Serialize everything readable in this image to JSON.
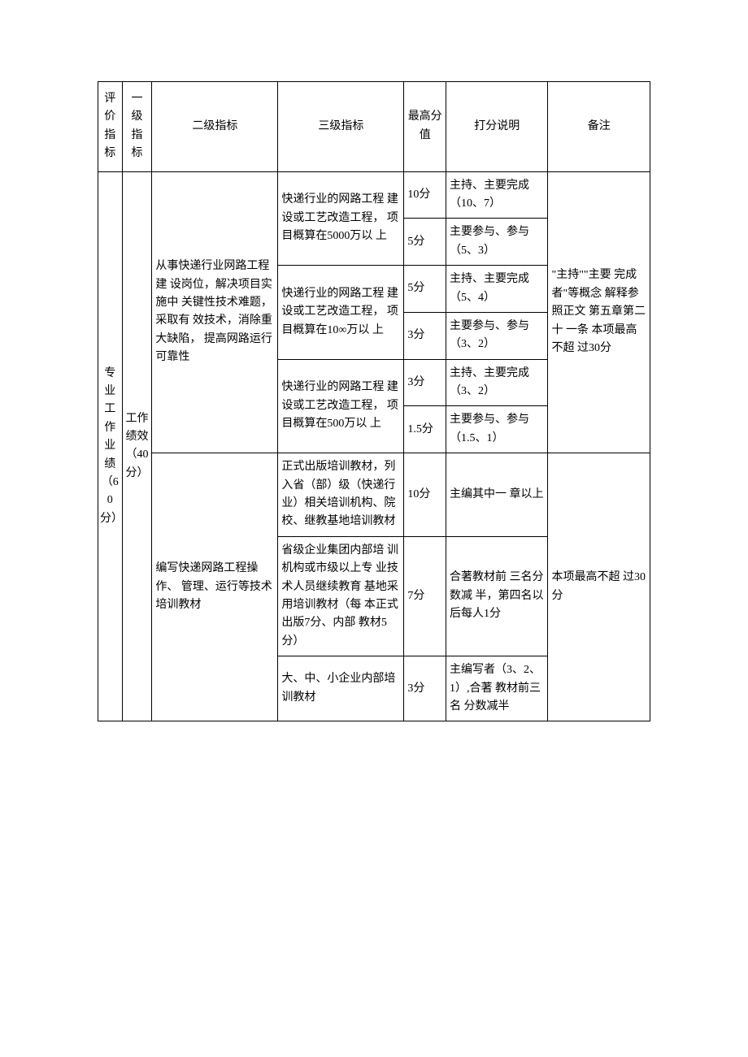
{
  "headers": {
    "eval": "评价指标",
    "l1": "一级指标",
    "l2": "二级指标",
    "l3": "三级指标",
    "score": "最高分值",
    "desc": "打分说明",
    "note": "备注"
  },
  "col0": "专业工作业绩 （60分）",
  "col1": "工作绩效（40分）",
  "section1": {
    "l2": "从事快递行业网路工程建 设岗位，解决项目实施中 关键性技术难题，采取有 效技术，消除重大缺陷， 提高网路运行可靠性",
    "note": "\"主持\"\"主要 完成者\"等概念 解释参照正文   第五章第二十 一条 本项最高不超   过30分",
    "rows": [
      {
        "l3": "快递行业的网路工程 建设或工艺改造工程， 项目概算在5000万以 上",
        "score": "10分",
        "desc": "主持、主要完成（10、7）"
      },
      {
        "score": "5分",
        "desc": "主要参与、参与（5、3）"
      },
      {
        "l3": "快递行业的网路工程 建设或工艺改造工程， 项目概算在10∞万以 上",
        "score": "5分",
        "desc": "主持、主要完成（5、4）"
      },
      {
        "score": "3分",
        "desc": "主要参与、参与（3、2）"
      },
      {
        "l3": "快递行业的网路工程 建设或工艺改造工程， 项目概算在500万以 上",
        "score": "3分",
        "desc": "主持、主要完成（3、2）"
      },
      {
        "score": "1.5分",
        "desc": "主要参与、参与（1.5、1）"
      }
    ]
  },
  "section2": {
    "l2": "编写快递网路工程操作、 管理、运行等技术培训教材",
    "note": "本项最高不超   过30分",
    "rows": [
      {
        "l3": "正式出版培训教材，列 入省（部）级（快递行 业）相关培训机构、院 校、继教基地培训教材",
        "score": "10分",
        "desc": "主编其中一 章以上"
      },
      {
        "l3": "省级企业集团内部培 训机构或市级以上专 业技术人员继续教育 基地采用培训教材（每 本正式出版7分、内部 教材5分）",
        "score": "7分",
        "desc": "合著教材前 三名分数减 半，第四名以 后每人1分"
      },
      {
        "l3": "大、中、小企业内部培 训教材",
        "score": "3分",
        "desc": "主编写者（3、2、1）,合著 教材前三名 分数减半"
      }
    ]
  }
}
